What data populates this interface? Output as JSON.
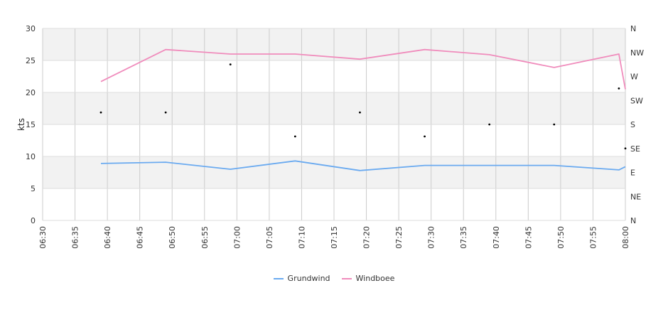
{
  "chart_data": {
    "type": "line",
    "title": "",
    "ylabel": "kts",
    "ylim": [
      0,
      30
    ],
    "y_ticks": [
      0,
      5,
      10,
      15,
      20,
      25,
      30
    ],
    "x_ticks": [
      "06:30",
      "06:35",
      "06:40",
      "06:45",
      "06:50",
      "06:55",
      "07:00",
      "07:05",
      "07:10",
      "07:15",
      "07:20",
      "07:25",
      "07:30",
      "07:35",
      "07:40",
      "07:45",
      "07:50",
      "07:55",
      "08:00"
    ],
    "right_axis_ticks": [
      "N",
      "NE",
      "E",
      "SE",
      "S",
      "SW",
      "W",
      "NW",
      "N"
    ],
    "grid": true,
    "legend_position": "bottom",
    "series": [
      {
        "name": "Grundwind",
        "color": "#6aaaf0",
        "x": [
          "06:39",
          "06:49",
          "06:59",
          "07:09",
          "07:19",
          "07:29",
          "07:39",
          "07:49",
          "07:59",
          "08:00"
        ],
        "values": [
          8.9,
          9.1,
          8.0,
          9.3,
          7.8,
          8.6,
          8.6,
          8.6,
          7.9,
          8.4
        ]
      },
      {
        "name": "Windboee",
        "color": "#f08cbc",
        "x": [
          "06:39",
          "06:49",
          "06:59",
          "07:09",
          "07:19",
          "07:29",
          "07:39",
          "07:49",
          "07:59",
          "08:00"
        ],
        "values": [
          21.7,
          26.7,
          26.0,
          26.0,
          25.2,
          26.7,
          25.9,
          23.9,
          26.0,
          20.5
        ]
      }
    ],
    "direction_points": {
      "color": "#000000",
      "x": [
        "06:39",
        "06:49",
        "06:59",
        "07:09",
        "07:19",
        "07:29",
        "07:39",
        "07:49",
        "07:59",
        "08:00"
      ],
      "values": [
        "SSW",
        "SSW",
        "WNW",
        "SSE",
        "SSW",
        "SSE",
        "S",
        "S",
        "WSW",
        "SE"
      ]
    }
  }
}
